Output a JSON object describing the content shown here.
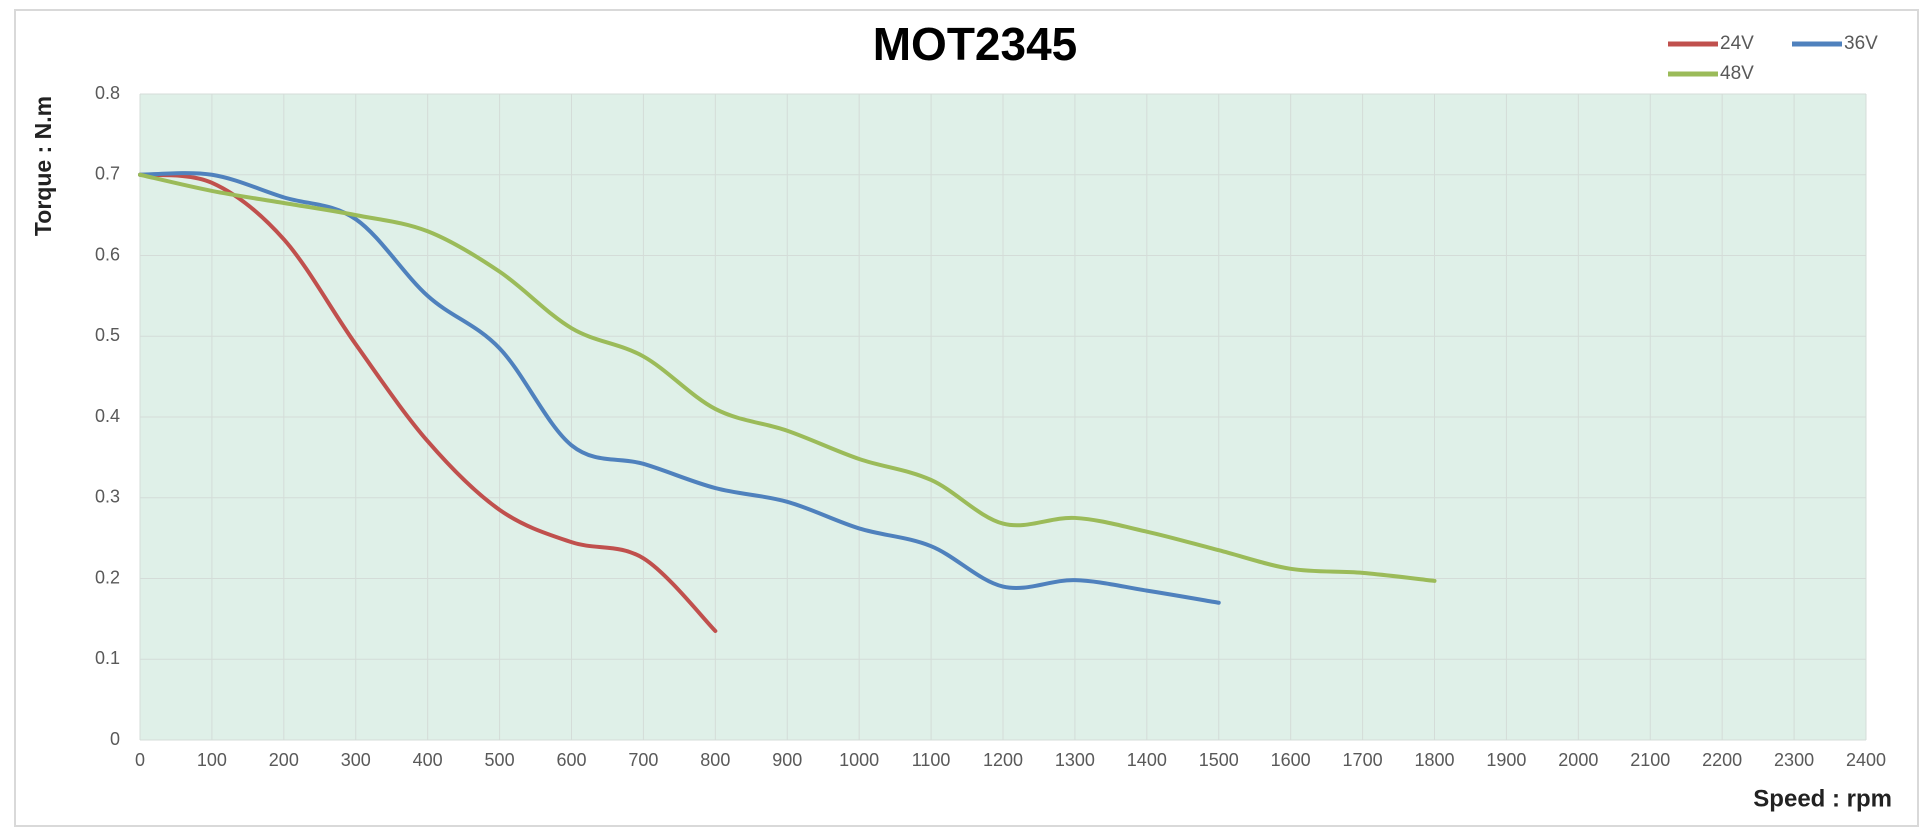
{
  "chart_data": {
    "type": "line",
    "title": "MOT2345",
    "xlabel": "Speed : rpm",
    "ylabel": "Torque : N.m",
    "xlim": [
      0,
      2400
    ],
    "xticks": [
      0,
      100,
      200,
      300,
      400,
      500,
      600,
      700,
      800,
      900,
      1000,
      1100,
      1200,
      1300,
      1400,
      1500,
      1600,
      1700,
      1800,
      1900,
      2000,
      2100,
      2200,
      2300,
      2400
    ],
    "ylim": [
      0,
      0.8
    ],
    "yticks": [
      0,
      0.1,
      0.2,
      0.3,
      0.4,
      0.5,
      0.6,
      0.7,
      0.8
    ],
    "grid": true,
    "legend": "top-right",
    "series": [
      {
        "name": "24V",
        "color": "#c0504d",
        "x": [
          0,
          100,
          200,
          300,
          400,
          500,
          600,
          700,
          800
        ],
        "values": [
          0.7,
          0.69,
          0.62,
          0.49,
          0.37,
          0.285,
          0.245,
          0.225,
          0.135
        ]
      },
      {
        "name": "36V",
        "color": "#4f81bd",
        "x": [
          0,
          100,
          200,
          300,
          400,
          500,
          600,
          700,
          800,
          900,
          1000,
          1100,
          1200,
          1300,
          1400,
          1500
        ],
        "values": [
          0.7,
          0.7,
          0.672,
          0.645,
          0.55,
          0.485,
          0.365,
          0.342,
          0.312,
          0.295,
          0.262,
          0.24,
          0.19,
          0.198,
          0.185,
          0.17
        ]
      },
      {
        "name": "48V",
        "color": "#9bbb59",
        "x": [
          0,
          100,
          200,
          300,
          400,
          500,
          600,
          700,
          800,
          900,
          1000,
          1100,
          1200,
          1300,
          1400,
          1500,
          1600,
          1700,
          1800
        ],
        "values": [
          0.7,
          0.68,
          0.665,
          0.65,
          0.63,
          0.58,
          0.51,
          0.475,
          0.41,
          0.383,
          0.348,
          0.322,
          0.268,
          0.275,
          0.258,
          0.235,
          0.212,
          0.207,
          0.197
        ]
      }
    ]
  }
}
